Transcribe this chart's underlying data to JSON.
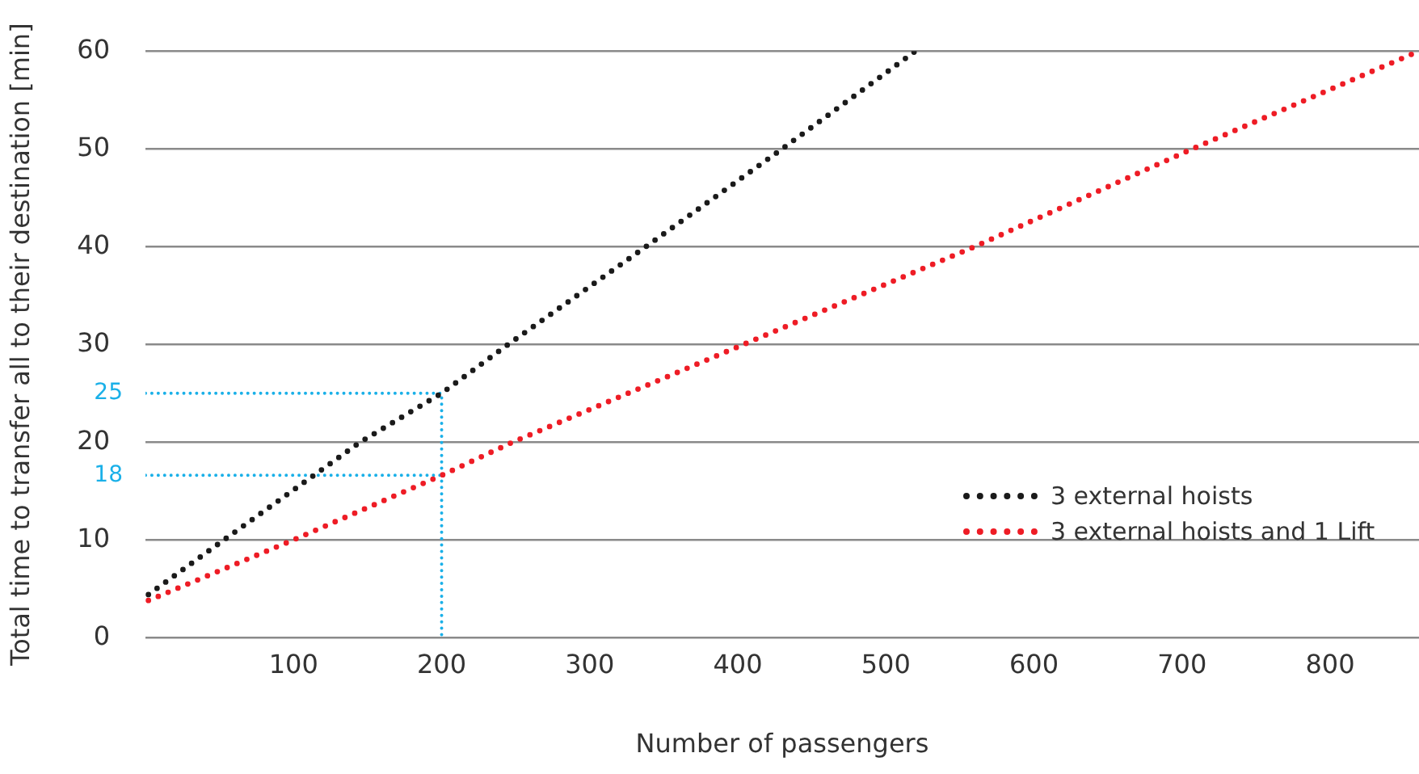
{
  "chart_data": {
    "type": "line",
    "xlabel": "Number of passengers",
    "ylabel": "Total time to transfer all to their destination [min]",
    "series": [
      {
        "name": "3 external hoists",
        "color": "#1a1a1a",
        "x": [
          2,
          53,
          145,
          200,
          245,
          338,
          430,
          520
        ],
        "values": [
          4.4,
          10,
          20,
          25,
          30,
          40,
          50,
          60
        ]
      },
      {
        "name": "3 external hoists and 1 Lift",
        "color": "#ee1c25",
        "x": [
          2,
          100,
          200,
          248,
          404,
          560,
          707,
          860
        ],
        "values": [
          3.8,
          10,
          16.6,
          20,
          30,
          40,
          50,
          60
        ]
      },
      {
        "color": "#1ab0e8",
        "x": [
          0,
          200,
          200
        ],
        "values": [
          25,
          25,
          0
        ]
      },
      {
        "color": "#1ab0e8",
        "x": [
          0,
          200
        ],
        "values": [
          16.6,
          16.6
        ]
      }
    ],
    "xlim": [
      0,
      860
    ],
    "xticks": [
      100,
      200,
      300,
      400,
      500,
      600,
      700,
      800
    ],
    "ylim": [
      0,
      60
    ],
    "yticks": [
      0,
      10,
      20,
      30,
      40,
      50,
      60
    ],
    "annotations": [
      "25",
      "18"
    ],
    "grid": "y",
    "legend": "right",
    "line_style": "dotted",
    "marker": "none"
  }
}
